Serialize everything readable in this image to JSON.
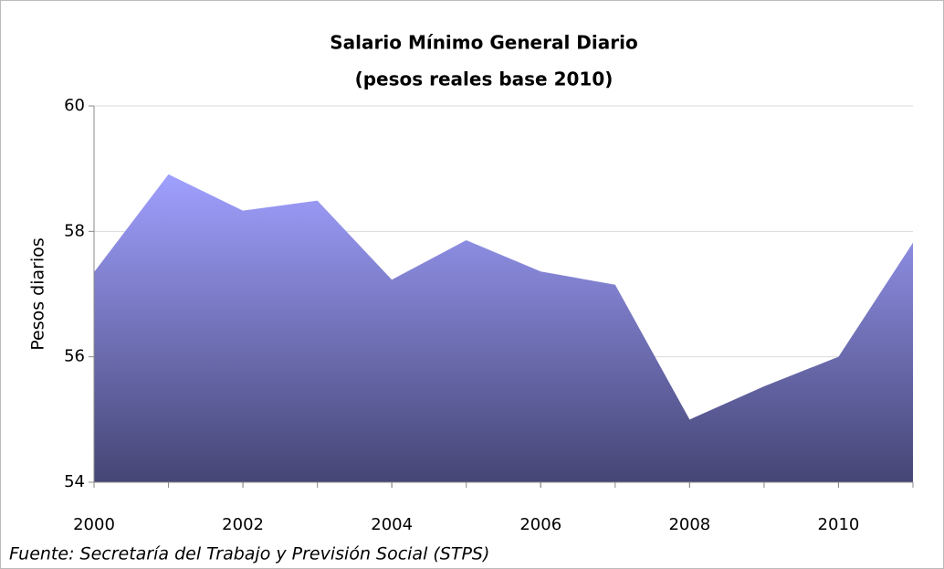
{
  "chart_data": {
    "type": "area",
    "title": "Salario Mínimo General Diario",
    "subtitle": "(pesos reales base 2010)",
    "y_label": "Pesos diarios",
    "source": "Fuente: Secretaría del Trabajo y Previsión Social (STPS)",
    "x": [
      2000,
      2001,
      2002,
      2003,
      2004,
      2005,
      2006,
      2007,
      2008,
      2009,
      2010,
      2011
    ],
    "values": [
      57.35,
      58.91,
      58.33,
      58.49,
      57.23,
      57.86,
      57.36,
      57.15,
      55.0,
      55.53,
      56.0,
      57.82
    ],
    "color_top": "#a0a0ff",
    "color_bottom": "#454575",
    "xlim": [
      2000,
      2011
    ],
    "xticks": [
      2000,
      2002,
      2004,
      2006,
      2008,
      2010
    ],
    "ylim": [
      54,
      60
    ],
    "yticks": [
      54,
      56,
      58,
      60
    ],
    "grid": true
  }
}
